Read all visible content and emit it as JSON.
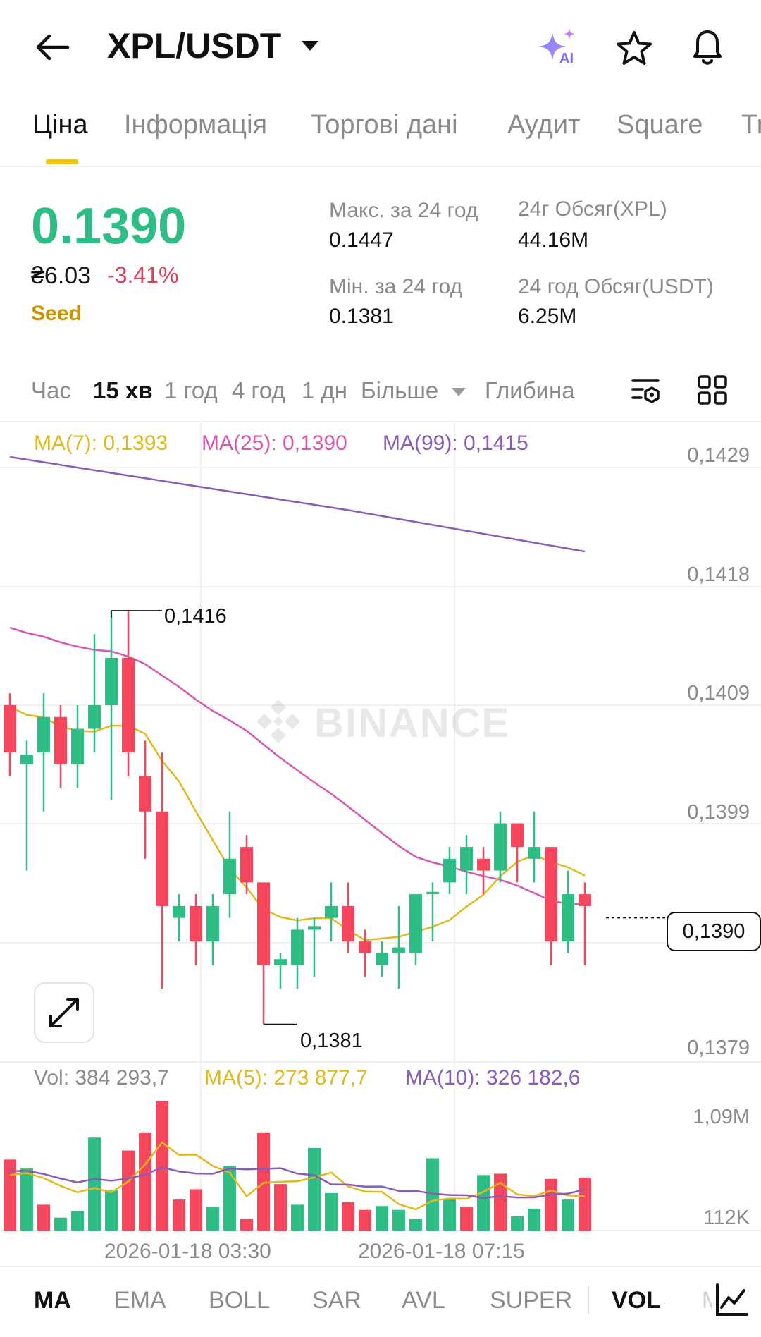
{
  "header": {
    "back_icon": "arrow-left-icon",
    "pair": "XPL/USDT",
    "ai_badge": "AI",
    "icons": [
      "ai-sparkle-icon",
      "star-icon",
      "bell-icon"
    ]
  },
  "tabs": [
    "Ціна",
    "Інформація",
    "Торгові дані",
    "Аудит",
    "Square",
    "Tr"
  ],
  "price_info": {
    "last_price": "0.1390",
    "fiat_price": "₴6.03",
    "change": "-3.41%",
    "tag": "Seed",
    "high_label": "Макс. за 24 год",
    "high_value": "0.1447",
    "low_label": "Мін. за 24 год",
    "low_value": "0.1381",
    "vol_base_label": "24г Обсяг(XPL)",
    "vol_base_value": "44.16M",
    "vol_quote_label": "24 год Обсяг(USDT)",
    "vol_quote_value": "6.25M"
  },
  "intervals": {
    "items": [
      "Час",
      "15 хв",
      "1 год",
      "4 год",
      "1 дн",
      "Більше",
      "Глибина"
    ],
    "active": "15 хв"
  },
  "chart_legend": {
    "ma7": "MA(7): 0,1393",
    "ma25": "MA(25): 0,1390",
    "ma99": "MA(99): 0,1415",
    "vol": "Vol: 384 293,7",
    "vol_ma5": "MA(5): 273 877,7",
    "vol_ma10": "MA(10): 326 182,6"
  },
  "watermark": "BINANCE",
  "colors": {
    "up": "#2ebd85",
    "down": "#f6465d",
    "ma7": "#e3b81d",
    "ma25": "#d957b2",
    "ma99": "#8a5bb8",
    "accent": "#f0c419"
  },
  "chart_data": {
    "type": "candlestick",
    "price_axis_ticks": [
      "0,1429",
      "0,1418",
      "0,1409",
      "0,1399",
      "0,1379"
    ],
    "current_price_label": "0,1390",
    "high_marker": "0,1416",
    "low_marker": "0,1381",
    "volume_axis_ticks": [
      "1,09M",
      "112K"
    ],
    "time_labels": [
      "2026-01-18 03:30",
      "2026-01-18 07:15"
    ],
    "ylim": [
      0.1378,
      0.143
    ],
    "candles": [
      {
        "o": 0.1408,
        "c": 0.1404,
        "h": 0.1409,
        "l": 0.1402
      },
      {
        "o": 0.1403,
        "c": 0.14038,
        "h": 0.1405,
        "l": 0.1394
      },
      {
        "o": 0.1404,
        "c": 0.1407,
        "h": 0.1409,
        "l": 0.1399
      },
      {
        "o": 0.1407,
        "c": 0.1403,
        "h": 0.1408,
        "l": 0.1401
      },
      {
        "o": 0.1403,
        "c": 0.1406,
        "h": 0.1408,
        "l": 0.1401
      },
      {
        "o": 0.1406,
        "c": 0.1408,
        "h": 0.1414,
        "l": 0.1404
      },
      {
        "o": 0.1408,
        "c": 0.1412,
        "h": 0.1416,
        "l": 0.14
      },
      {
        "o": 0.1412,
        "c": 0.1404,
        "h": 0.1416,
        "l": 0.1402
      },
      {
        "o": 0.1402,
        "c": 0.1399,
        "h": 0.1405,
        "l": 0.1395
      },
      {
        "o": 0.1399,
        "c": 0.1391,
        "h": 0.1404,
        "l": 0.1384
      },
      {
        "o": 0.139,
        "c": 0.1391,
        "h": 0.1392,
        "l": 0.1388
      },
      {
        "o": 0.1391,
        "c": 0.1388,
        "h": 0.1392,
        "l": 0.1386
      },
      {
        "o": 0.1388,
        "c": 0.1391,
        "h": 0.1392,
        "l": 0.1386
      },
      {
        "o": 0.1392,
        "c": 0.1395,
        "h": 0.1399,
        "l": 0.139
      },
      {
        "o": 0.1396,
        "c": 0.1393,
        "h": 0.1397,
        "l": 0.1392
      },
      {
        "o": 0.1393,
        "c": 0.1386,
        "h": 0.1393,
        "l": 0.1381
      },
      {
        "o": 0.1386,
        "c": 0.13865,
        "h": 0.1387,
        "l": 0.1384
      },
      {
        "o": 0.1386,
        "c": 0.1389,
        "h": 0.139,
        "l": 0.1384
      },
      {
        "o": 0.1389,
        "c": 0.13893,
        "h": 0.139,
        "l": 0.1385
      },
      {
        "o": 0.139,
        "c": 0.1391,
        "h": 0.1393,
        "l": 0.1388
      },
      {
        "o": 0.1391,
        "c": 0.1388,
        "h": 0.1393,
        "l": 0.1387
      },
      {
        "o": 0.1388,
        "c": 0.1387,
        "h": 0.1389,
        "l": 0.1385
      },
      {
        "o": 0.1386,
        "c": 0.1387,
        "h": 0.1388,
        "l": 0.1385
      },
      {
        "o": 0.1387,
        "c": 0.13875,
        "h": 0.1391,
        "l": 0.1384
      },
      {
        "o": 0.1387,
        "c": 0.1392,
        "h": 0.1392,
        "l": 0.1386
      },
      {
        "o": 0.1392,
        "c": 0.13922,
        "h": 0.1393,
        "l": 0.1388
      },
      {
        "o": 0.1393,
        "c": 0.1395,
        "h": 0.1396,
        "l": 0.1392
      },
      {
        "o": 0.1394,
        "c": 0.1396,
        "h": 0.1397,
        "l": 0.1392
      },
      {
        "o": 0.1395,
        "c": 0.1394,
        "h": 0.1396,
        "l": 0.1392
      },
      {
        "o": 0.1394,
        "c": 0.1398,
        "h": 0.1399,
        "l": 0.1393
      },
      {
        "o": 0.1398,
        "c": 0.1396,
        "h": 0.1398,
        "l": 0.1393
      },
      {
        "o": 0.1395,
        "c": 0.1396,
        "h": 0.1399,
        "l": 0.1393
      },
      {
        "o": 0.1396,
        "c": 0.1388,
        "h": 0.1396,
        "l": 0.1386
      },
      {
        "o": 0.1388,
        "c": 0.1392,
        "h": 0.1394,
        "l": 0.1387
      },
      {
        "o": 0.1392,
        "c": 0.1391,
        "h": 0.1393,
        "l": 0.1386
      }
    ],
    "volumes": [
      {
        "v": 0.55,
        "up": false
      },
      {
        "v": 0.48,
        "up": true
      },
      {
        "v": 0.2,
        "up": false
      },
      {
        "v": 0.1,
        "up": true
      },
      {
        "v": 0.15,
        "up": true
      },
      {
        "v": 0.72,
        "up": true
      },
      {
        "v": 0.31,
        "up": true
      },
      {
        "v": 0.62,
        "up": false
      },
      {
        "v": 0.76,
        "up": false
      },
      {
        "v": 1.0,
        "up": false
      },
      {
        "v": 0.24,
        "up": false
      },
      {
        "v": 0.32,
        "up": false
      },
      {
        "v": 0.18,
        "up": true
      },
      {
        "v": 0.5,
        "up": true
      },
      {
        "v": 0.09,
        "up": false
      },
      {
        "v": 0.76,
        "up": false
      },
      {
        "v": 0.36,
        "up": false
      },
      {
        "v": 0.2,
        "up": true
      },
      {
        "v": 0.64,
        "up": true
      },
      {
        "v": 0.29,
        "up": true
      },
      {
        "v": 0.22,
        "up": false
      },
      {
        "v": 0.16,
        "up": false
      },
      {
        "v": 0.19,
        "up": true
      },
      {
        "v": 0.16,
        "up": true
      },
      {
        "v": 0.09,
        "up": true
      },
      {
        "v": 0.56,
        "up": true
      },
      {
        "v": 0.24,
        "up": true
      },
      {
        "v": 0.18,
        "up": false
      },
      {
        "v": 0.43,
        "up": true
      },
      {
        "v": 0.44,
        "up": false
      },
      {
        "v": 0.11,
        "up": true
      },
      {
        "v": 0.17,
        "up": true
      },
      {
        "v": 0.4,
        "up": false
      },
      {
        "v": 0.24,
        "up": true
      },
      {
        "v": 0.41,
        "up": false
      }
    ]
  },
  "bottom_tabs": {
    "items": [
      "MA",
      "EMA",
      "BOLL",
      "SAR",
      "AVL",
      "SUPER",
      "VOL",
      "M"
    ],
    "active": [
      "MA",
      "VOL"
    ]
  }
}
